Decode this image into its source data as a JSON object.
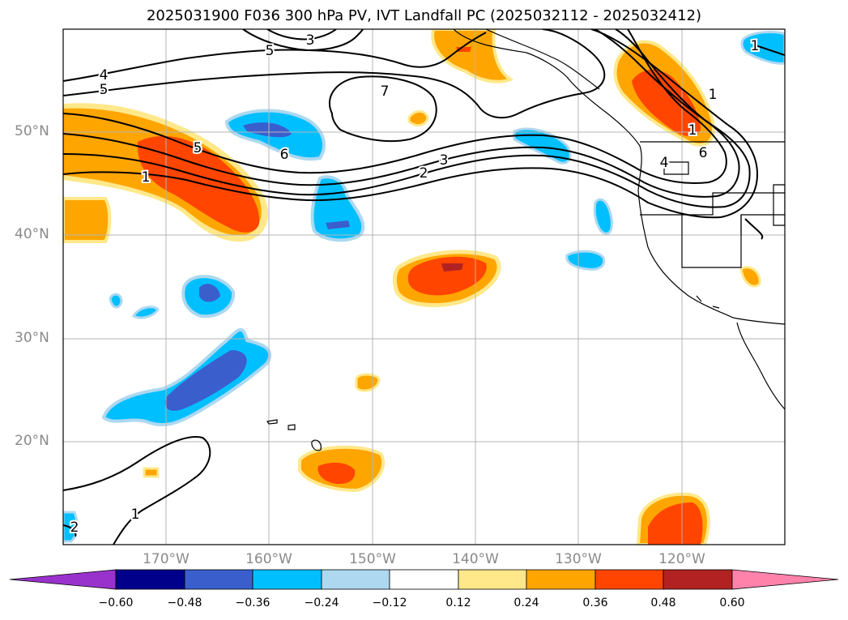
{
  "title": "2025031900 F036 300 hPa PV, IVT Landfall PC (2025032112 - 2025032412)",
  "lat_labels": [
    "50°N",
    "40°N",
    "30°N",
    "20°N"
  ],
  "lon_labels": [
    "170°W",
    "160°W",
    "150°W",
    "140°W",
    "130°W",
    "120°W"
  ],
  "contour_labels": [
    "3",
    "5",
    "4",
    "5",
    "7",
    "5",
    "6",
    "1",
    "3",
    "2",
    "1",
    "6",
    "4",
    "1",
    "1",
    "2",
    "1"
  ],
  "colorbar": {
    "ticks": [
      "−0.60",
      "−0.48",
      "−0.36",
      "−0.24",
      "−0.12",
      "0.12",
      "0.24",
      "0.36",
      "0.48",
      "0.60"
    ],
    "colors": [
      "#9932cc",
      "#00008b",
      "#3a5fcd",
      "#00bfff",
      "#add8f0",
      "#ffffff",
      "#ffe88a",
      "#ffa500",
      "#ff4500",
      "#b22222",
      "#ff82ab"
    ]
  }
}
